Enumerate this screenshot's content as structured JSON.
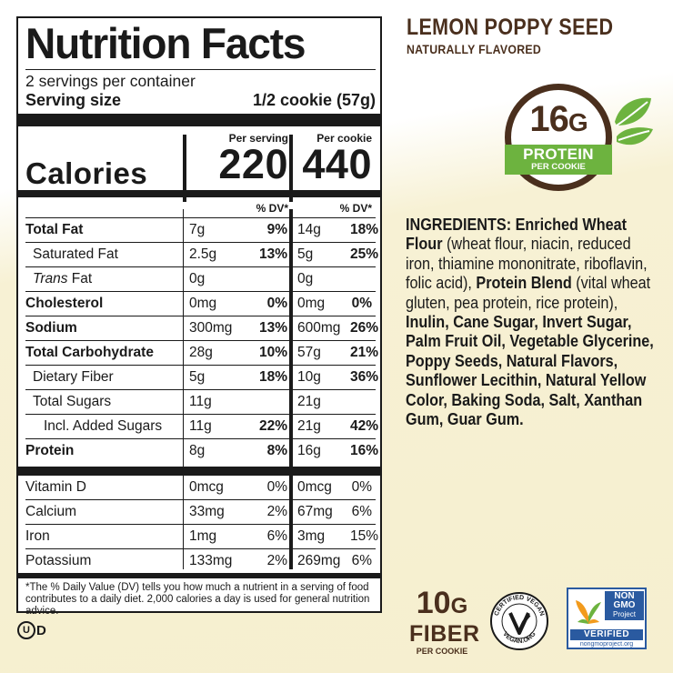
{
  "nutrition": {
    "title": "Nutrition Facts",
    "servings": "2 servings per container",
    "serving_size_label": "Serving size",
    "serving_size_value": "1/2 cookie (57g)",
    "per_serving_label": "Per serving",
    "per_cookie_label": "Per cookie",
    "calories_label": "Calories",
    "calories_serving": "220",
    "calories_cookie": "440",
    "dv_header": "% DV*",
    "rows": [
      {
        "name": "Total Fat",
        "amt1": "7g",
        "dv1": "9%",
        "amt2": "14g",
        "dv2": "18%"
      },
      {
        "name": "Saturated Fat",
        "amt1": "2.5g",
        "dv1": "13%",
        "amt2": "5g",
        "dv2": "25%"
      },
      {
        "name_italic": "Trans",
        "name_rest": " Fat",
        "amt1": "0g",
        "dv1": "",
        "amt2": "0g",
        "dv2": ""
      },
      {
        "name": "Cholesterol",
        "amt1": "0mg",
        "dv1": "0%",
        "amt2": "0mg",
        "dv2": "0%"
      },
      {
        "name": "Sodium",
        "amt1": "300mg",
        "dv1": "13%",
        "amt2": "600mg",
        "dv2": "26%"
      },
      {
        "name": "Total Carbohydrate",
        "amt1": "28g",
        "dv1": "10%",
        "amt2": "57g",
        "dv2": "21%"
      },
      {
        "name": "Dietary Fiber",
        "amt1": "5g",
        "dv1": "18%",
        "amt2": "10g",
        "dv2": "36%"
      },
      {
        "name": "Total Sugars",
        "amt1": "11g",
        "dv1": "",
        "amt2": "21g",
        "dv2": ""
      },
      {
        "name": "Incl. Added Sugars",
        "amt1": "11g",
        "dv1": "22%",
        "amt2": "21g",
        "dv2": "42%"
      },
      {
        "name": "Protein",
        "amt1": "8g",
        "dv1": "8%",
        "amt2": "16g",
        "dv2": "16%"
      }
    ],
    "vitamins": [
      {
        "name": "Vitamin D",
        "amt1": "0mcg",
        "dv1": "0%",
        "amt2": "0mcg",
        "dv2": "0%"
      },
      {
        "name": "Calcium",
        "amt1": "33mg",
        "dv1": "2%",
        "amt2": "67mg",
        "dv2": "6%"
      },
      {
        "name": "Iron",
        "amt1": "1mg",
        "dv1": "6%",
        "amt2": "3mg",
        "dv2": "15%"
      },
      {
        "name": "Potassium",
        "amt1": "133mg",
        "dv1": "2%",
        "amt2": "269mg",
        "dv2": "6%"
      }
    ],
    "footnote": "*The % Daily Value (DV) tells you how much a nutrient in a serving of food contributes to a daily diet. 2,000 calories a day is used for general nutrition advice."
  },
  "product": {
    "flavor": "LEMON POPPY SEED",
    "flavor_sub": "NATURALLY FLAVORED"
  },
  "protein_badge": {
    "amount": "16",
    "unit": "G",
    "label": "PROTEIN",
    "sub": "PER COOKIE"
  },
  "ingredients": {
    "segments": [
      {
        "text": "INGREDIENTS: Enriched Wheat Flour",
        "bold": true
      },
      {
        "text": " (wheat flour, niacin, reduced iron, thiamine mononitrate, riboflavin, folic acid), ",
        "bold": false
      },
      {
        "text": "Protein Blend",
        "bold": true
      },
      {
        "text": " (vital wheat gluten, pea protein, rice protein), ",
        "bold": false
      },
      {
        "text": "Inulin, Cane Sugar, Invert Sugar, Palm Fruit Oil, Vegetable Glycerine, Poppy Seeds, Natural Flavors, Sunflower Lecithin, Natural Yellow Color, Baking Soda, Salt, Xanthan Gum, Guar Gum.",
        "bold": true
      }
    ]
  },
  "fiber_badge": {
    "amount": "10",
    "unit": "G",
    "label": "FIBER",
    "sub": "PER COOKIE"
  },
  "vegan_seal": {
    "top_text": "CERTIFIED VEGAN",
    "bottom_text": "VEGAN.ORG"
  },
  "nongmo_seal": {
    "line1": "NON",
    "line2": "GMO",
    "line3": "Project",
    "verified": "VERIFIED",
    "url": "nongmoproject.org"
  },
  "kosher": {
    "symbol": "U",
    "suffix": "D"
  },
  "colors": {
    "brown": "#4a2f1d",
    "green": "#6db33f",
    "cream": "#f6efcf",
    "nongmo_blue": "#2a5aa0"
  }
}
